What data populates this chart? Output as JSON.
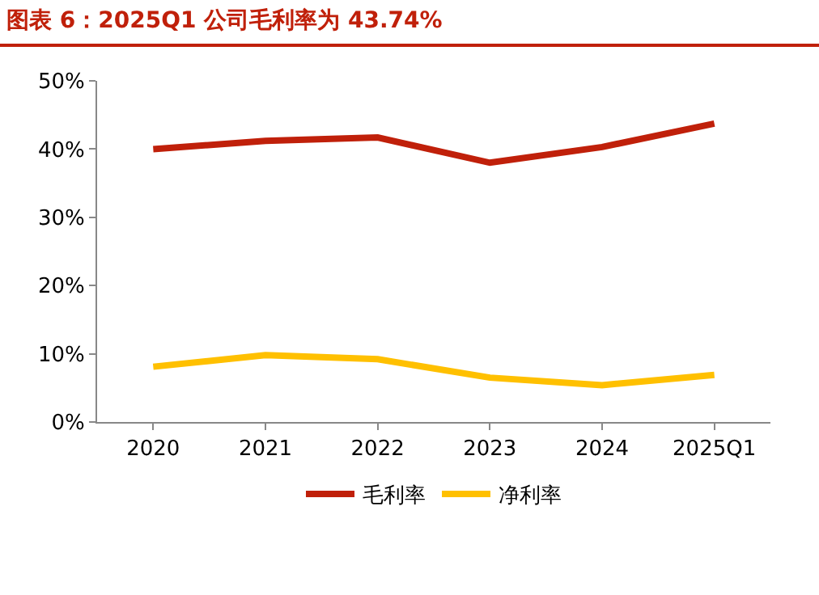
{
  "chart_data": {
    "type": "line",
    "title": "图表 6：2025Q1 公司毛利率为 43.74%",
    "categories": [
      "2020",
      "2021",
      "2022",
      "2023",
      "2024",
      "2025Q1"
    ],
    "series": [
      {
        "name": "毛利率",
        "color": "#c0200a",
        "values": [
          40.0,
          41.2,
          41.7,
          38.0,
          40.3,
          43.74
        ]
      },
      {
        "name": "净利率",
        "color": "#ffc000",
        "values": [
          8.1,
          9.8,
          9.2,
          6.5,
          5.4,
          6.9
        ]
      }
    ],
    "ylim": [
      0,
      50
    ],
    "yticks": [
      {
        "value": 0,
        "label": "0%"
      },
      {
        "value": 10,
        "label": "10%"
      },
      {
        "value": 20,
        "label": "20%"
      },
      {
        "value": 30,
        "label": "30%"
      },
      {
        "value": 40,
        "label": "40%"
      },
      {
        "value": 50,
        "label": "50%"
      }
    ],
    "grid": false,
    "legend": "bottom",
    "marker": "none",
    "line_style": "solid"
  }
}
